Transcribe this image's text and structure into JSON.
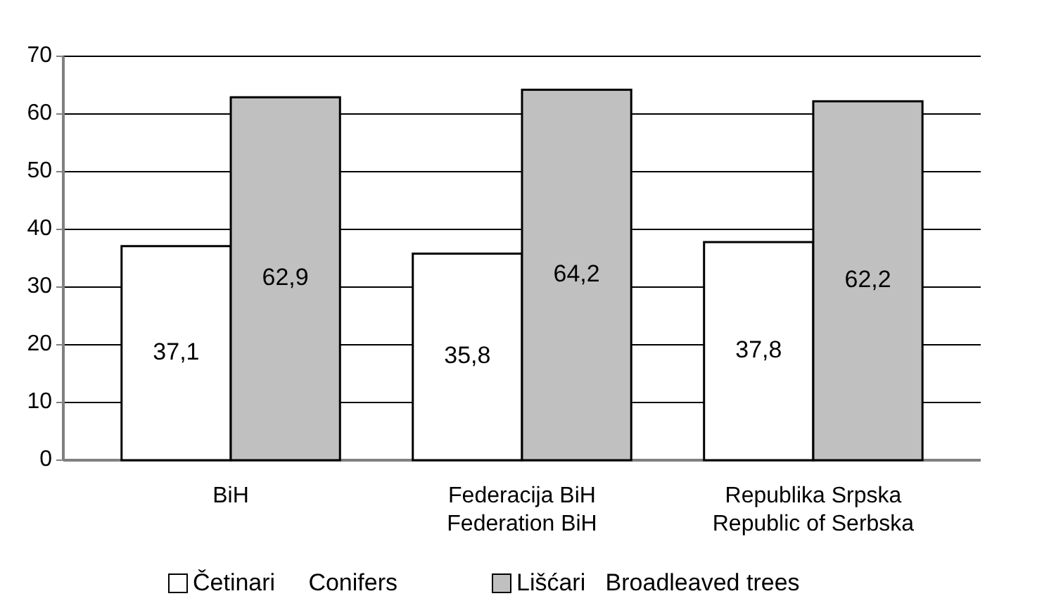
{
  "chart_data": {
    "type": "bar",
    "categories": [
      "BiH",
      "Federacija BiH\nFederation BiH",
      "Republika Srpska\nRepublic of Serbska"
    ],
    "series": [
      {
        "name": "Četinari     Conifers",
        "color": "#ffffff",
        "values": [
          37.1,
          35.8,
          37.8
        ],
        "value_labels": [
          "37,1",
          "35,8",
          "37,8"
        ]
      },
      {
        "name": "Lišćari   Broadleaved trees",
        "color": "#c0c0c0",
        "values": [
          62.9,
          64.2,
          62.2
        ],
        "value_labels": [
          "62,9",
          "64,2",
          "62,2"
        ]
      }
    ],
    "ylim": [
      0,
      70
    ],
    "yticks": [
      0,
      10,
      20,
      30,
      40,
      50,
      60,
      70
    ],
    "grid": "y",
    "legend": "bottom"
  }
}
